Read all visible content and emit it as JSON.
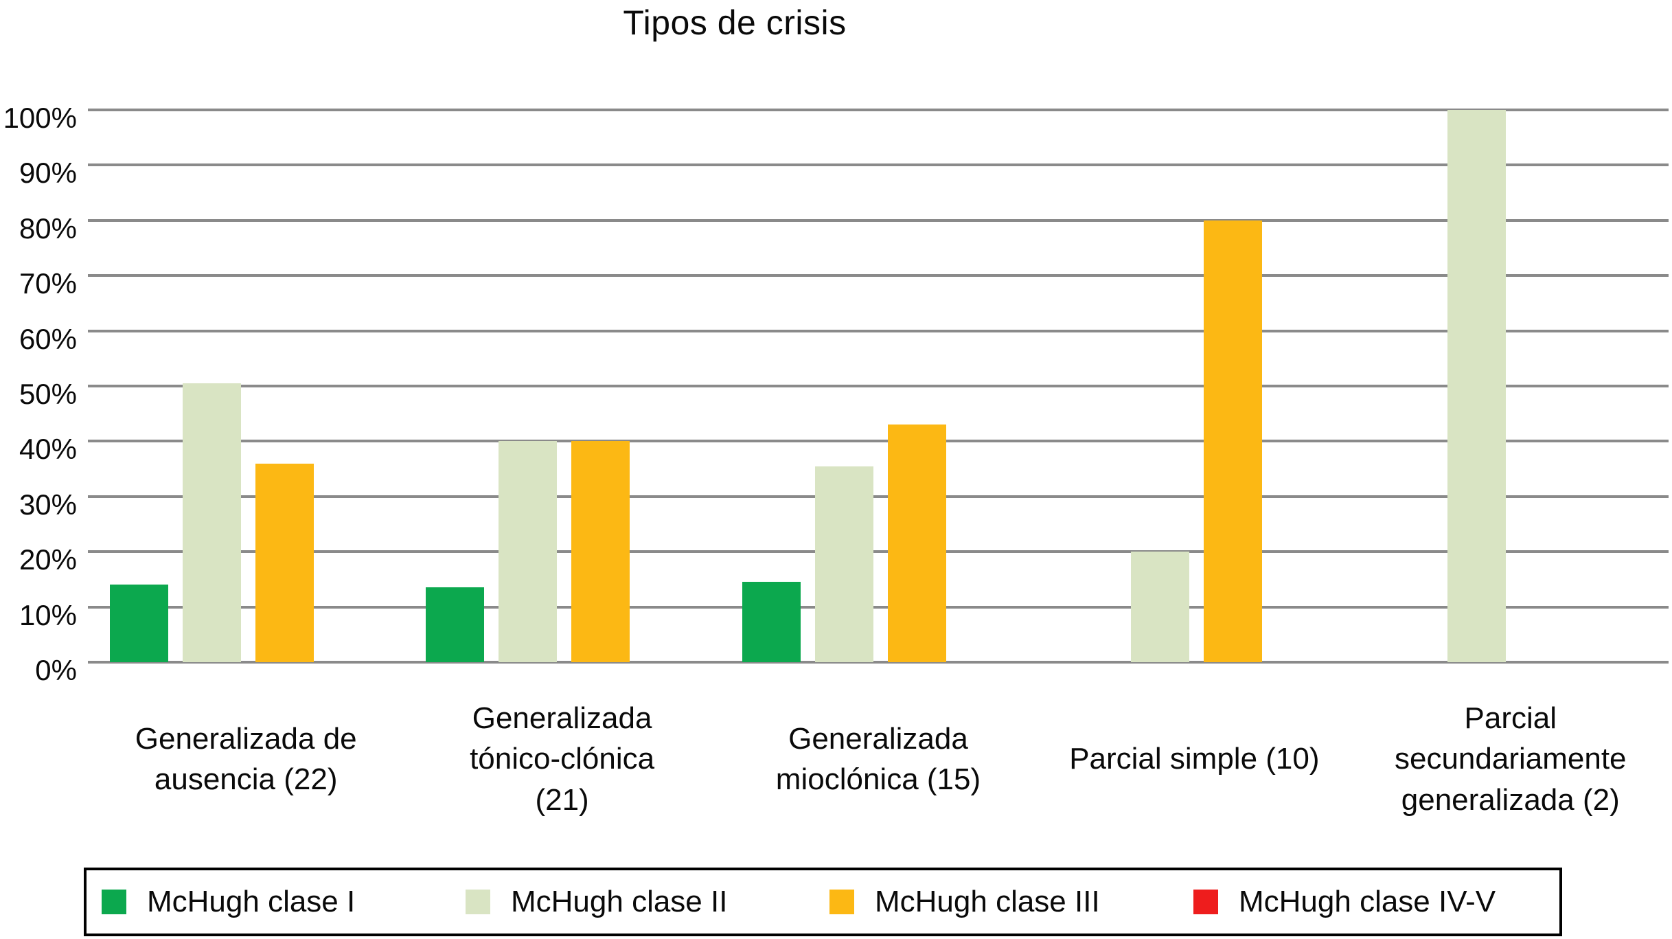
{
  "title": "Tipos de crisis",
  "colors": {
    "gridline": "#8a8a8a",
    "legend_border": "#000000",
    "text": "#0a0a0a",
    "background": "#ffffff"
  },
  "chart_data": {
    "type": "bar",
    "title": "Tipos de crisis",
    "categories": [
      "Generalizada de ausencia (22)",
      "Generalizada tónico-clónica (21)",
      "Generalizada mioclónica (15)",
      "Parcial simple (10)",
      "Parcial secundariamente generalizada (2)"
    ],
    "category_labels": [
      "Generalizada de\nausencia (22)",
      "Generalizada\ntónico-clónica\n(21)",
      "Generalizada\nmioclónica (15)",
      "Parcial simple (10)",
      "Parcial\nsecundariamente\ngeneralizada (2)"
    ],
    "series": [
      {
        "name": "McHugh clase I",
        "color": "#0ca84e",
        "values": [
          14,
          13.5,
          14.5,
          0,
          0
        ]
      },
      {
        "name": "McHugh clase II",
        "color": "#d9e4c3",
        "values": [
          50.5,
          40,
          35.5,
          20,
          100
        ]
      },
      {
        "name": "McHugh clase III",
        "color": "#fcb814",
        "values": [
          36,
          40,
          43,
          80,
          0
        ]
      },
      {
        "name": "McHugh clase IV-V",
        "color": "#ee1d1d",
        "values": [
          0,
          0,
          0,
          0,
          0
        ]
      }
    ],
    "xlabel": "",
    "ylabel": "",
    "ylim": [
      0,
      100
    ],
    "yticks": [
      "0%",
      "10%",
      "20%",
      "30%",
      "40%",
      "50%",
      "60%",
      "70%",
      "80%",
      "90%",
      "100%"
    ],
    "grid": true,
    "legend_position": "bottom"
  }
}
